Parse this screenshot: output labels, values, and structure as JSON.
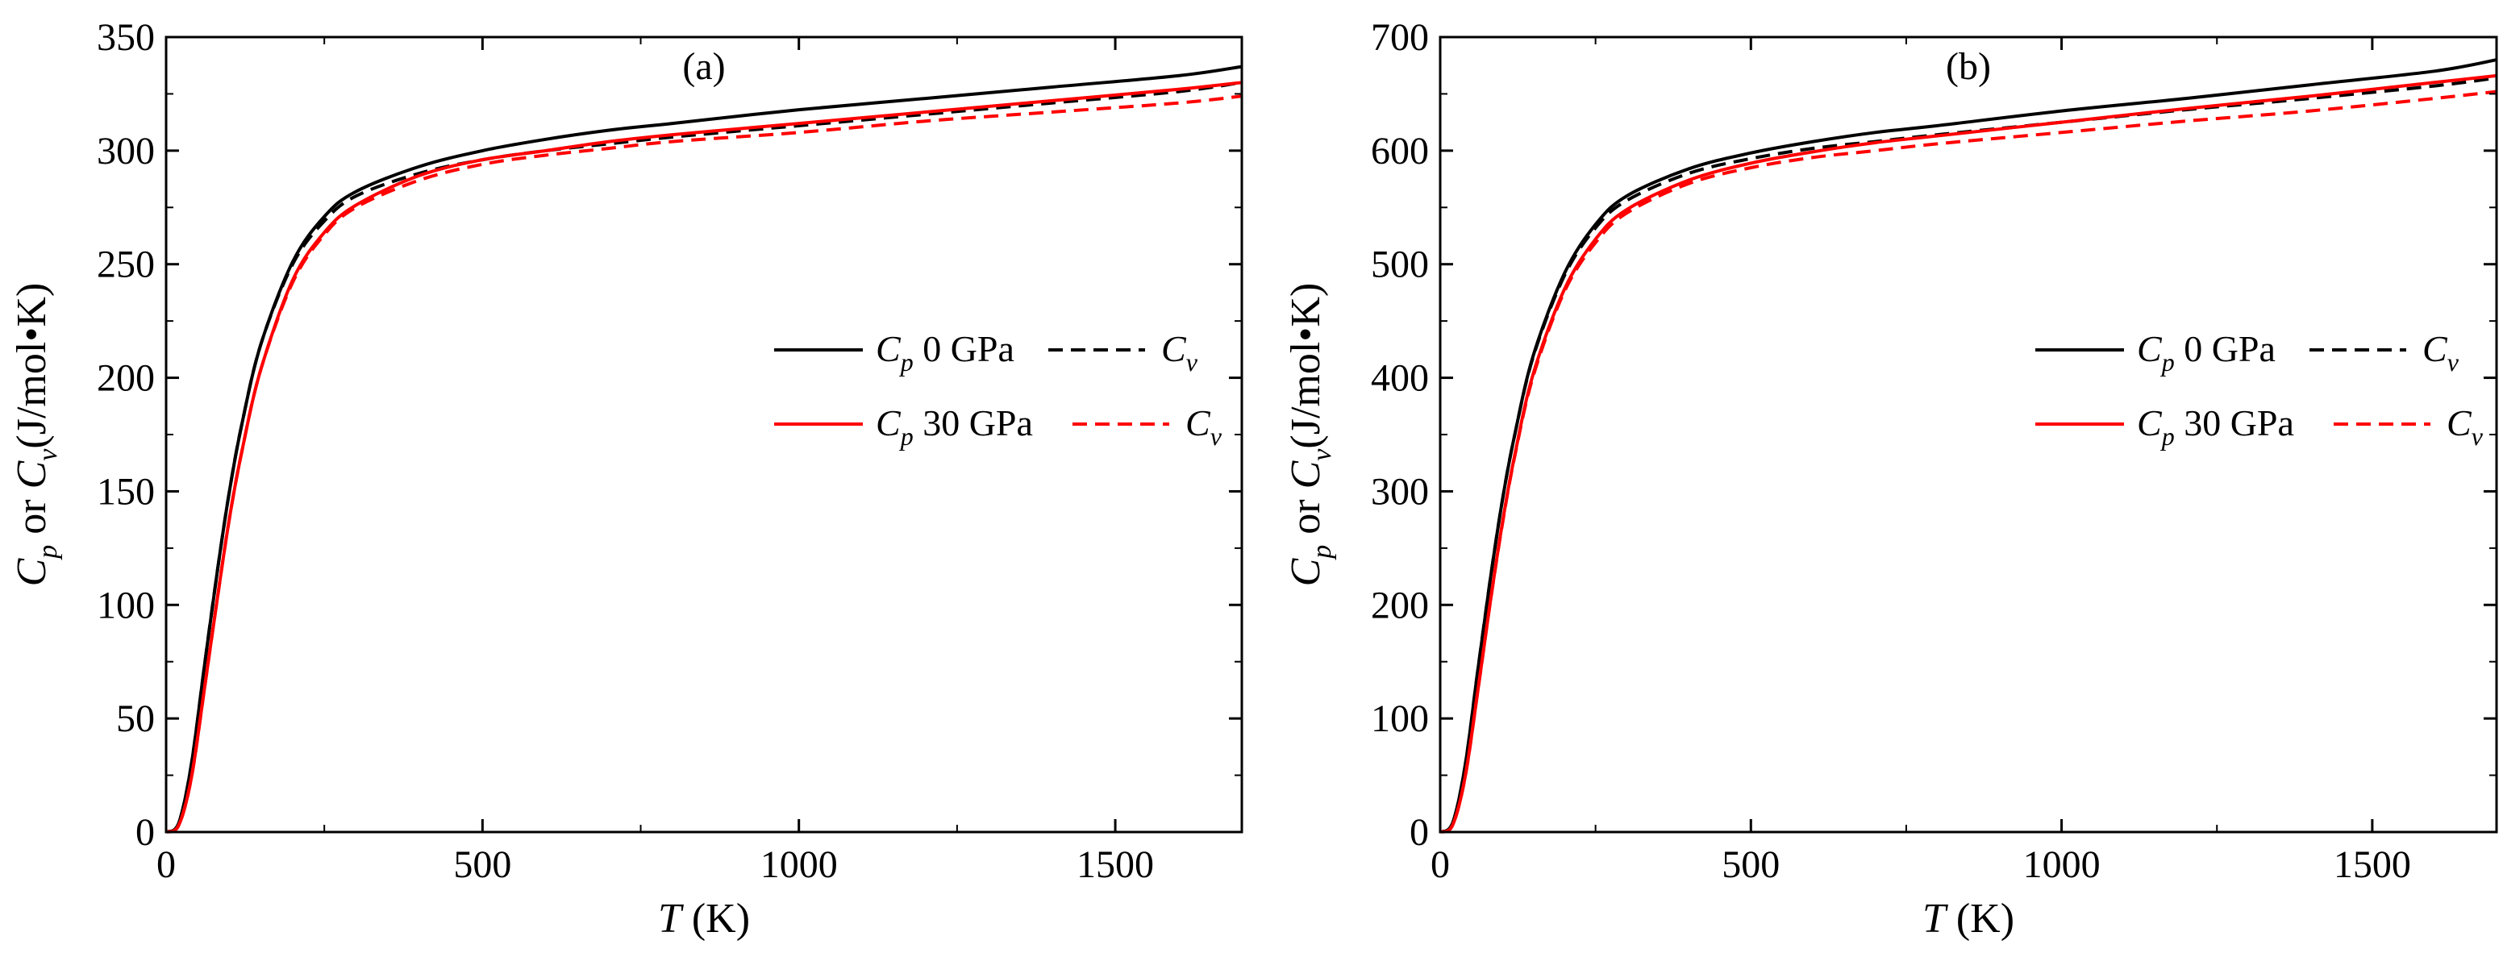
{
  "chart_data": [
    {
      "type": "line",
      "panel_label": "(a)",
      "xlabel": {
        "var": "T",
        "unit": " (K)"
      },
      "ylabel": {
        "main": "C",
        "sub1": "p",
        "mid": " or ",
        "main2": "C",
        "sub2": "v",
        "unit": "(J/mol•K)"
      },
      "xlim": [
        0,
        1700
      ],
      "ylim": [
        0,
        350
      ],
      "xticks": [
        0,
        500,
        1000,
        1500
      ],
      "yticks": [
        0,
        50,
        100,
        150,
        200,
        250,
        300,
        350
      ],
      "x": [
        0,
        20,
        40,
        60,
        80,
        100,
        120,
        150,
        200,
        250,
        300,
        400,
        500,
        600,
        700,
        800,
        1000,
        1200,
        1400,
        1600,
        1700
      ],
      "legend": {
        "rows": [
          {
            "cp": "C",
            "cp_sub": "p",
            "pressure": " 0 GPa",
            "cv": "C",
            "cv_sub": "v"
          },
          {
            "cp": "C",
            "cp_sub": "p",
            "pressure": " 30 GPa",
            "cv": "C",
            "cv_sub": "v"
          }
        ]
      },
      "series": [
        {
          "name": "Cp 0 GPa",
          "color": "#000000",
          "dash": "solid",
          "values": [
            0,
            4,
            30,
            72,
            113,
            150,
            180,
            215,
            251,
            271,
            282,
            293,
            300,
            305,
            309,
            312,
            318,
            323,
            328,
            333,
            337
          ]
        },
        {
          "name": "Cv 0 GPa",
          "color": "#000000",
          "dash": "dashed",
          "values": [
            0,
            4,
            30,
            72,
            113,
            150,
            180,
            215,
            250,
            269,
            280,
            290,
            296,
            300,
            303,
            306,
            311,
            316,
            321,
            326,
            330
          ]
        },
        {
          "name": "Cp 30 GPa",
          "color": "#ff0000",
          "dash": "solid",
          "values": [
            0,
            3,
            24,
            62,
            101,
            138,
            168,
            204,
            243,
            264,
            276,
            289,
            296,
            300,
            304,
            307,
            312,
            317,
            322,
            327,
            330
          ]
        },
        {
          "name": "Cv 30 GPa",
          "color": "#ff0000",
          "dash": "dashed",
          "values": [
            0,
            3,
            24,
            62,
            101,
            138,
            168,
            204,
            242,
            263,
            275,
            287,
            294,
            298,
            301,
            304,
            308,
            313,
            317,
            321,
            324
          ]
        }
      ]
    },
    {
      "type": "line",
      "panel_label": "(b)",
      "xlabel": {
        "var": "T",
        "unit": " (K)"
      },
      "ylabel": {
        "main": "C",
        "sub1": "p",
        "mid": " or ",
        "main2": "C",
        "sub2": "v",
        "unit": "(J/mol•K)"
      },
      "xlim": [
        0,
        1700
      ],
      "ylim": [
        0,
        700
      ],
      "xticks": [
        0,
        500,
        1000,
        1500
      ],
      "yticks": [
        0,
        100,
        200,
        300,
        400,
        500,
        600,
        700
      ],
      "x": [
        0,
        20,
        40,
        60,
        80,
        100,
        120,
        150,
        200,
        250,
        300,
        400,
        500,
        600,
        700,
        800,
        1000,
        1200,
        1400,
        1600,
        1700
      ],
      "legend": {
        "rows": [
          {
            "cp": "C",
            "cp_sub": "p",
            "pressure": " 0 GPa",
            "cv": "C",
            "cv_sub": "v"
          },
          {
            "cp": "C",
            "cp_sub": "p",
            "pressure": " 30 GPa",
            "cv": "C",
            "cv_sub": "v"
          }
        ]
      },
      "series": [
        {
          "name": "Cp 0 GPa",
          "color": "#000000",
          "dash": "solid",
          "values": [
            0,
            8,
            58,
            140,
            220,
            292,
            350,
            420,
            492,
            535,
            560,
            584,
            598,
            608,
            616,
            622,
            635,
            646,
            658,
            670,
            680
          ]
        },
        {
          "name": "Cv 0 GPa",
          "color": "#000000",
          "dash": "dashed",
          "values": [
            0,
            8,
            58,
            140,
            220,
            292,
            350,
            419,
            490,
            532,
            556,
            580,
            593,
            602,
            608,
            614,
            625,
            636,
            646,
            657,
            664
          ]
        },
        {
          "name": "Cp 30 GPa",
          "color": "#ff0000",
          "dash": "solid",
          "values": [
            0,
            6,
            48,
            122,
            200,
            272,
            332,
            404,
            478,
            522,
            548,
            574,
            589,
            599,
            607,
            613,
            625,
            637,
            648,
            660,
            666
          ]
        },
        {
          "name": "Cv 30 GPa",
          "color": "#ff0000",
          "dash": "dashed",
          "values": [
            0,
            6,
            48,
            122,
            200,
            271,
            331,
            402,
            476,
            519,
            545,
            571,
            585,
            594,
            600,
            606,
            616,
            626,
            635,
            646,
            652
          ]
        }
      ]
    }
  ]
}
